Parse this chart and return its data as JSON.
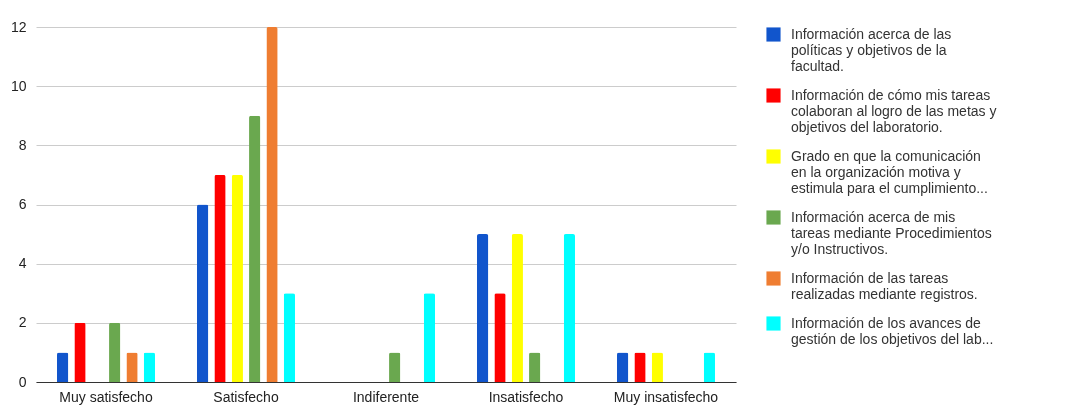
{
  "chart_data": {
    "type": "bar",
    "categories": [
      "Muy satisfecho",
      "Satisfecho",
      "Indiferente",
      "Insatisfecho",
      "Muy insatisfecho"
    ],
    "series": [
      {
        "name": "Información acerca de las políticas y objetivos de la facultad.",
        "color": "#1155cc",
        "values": [
          1,
          6,
          0,
          5,
          1
        ]
      },
      {
        "name": "Información de cómo mis tareas colaboran al logro de las metas y objetivos del laboratorio.",
        "color": "#ff0000",
        "values": [
          2,
          7,
          0,
          3,
          1
        ]
      },
      {
        "name": "Grado en que la comunicación en la organización motiva y estimula para el cumplimiento...",
        "color": "#ffff00",
        "values": [
          0,
          7,
          0,
          5,
          1
        ]
      },
      {
        "name": "Información acerca de mis tareas mediante Procedimientos y/o Instructivos.",
        "color": "#6aa84f",
        "values": [
          2,
          9,
          1,
          1,
          0
        ]
      },
      {
        "name": "Información de las tareas realizadas mediante registros.",
        "color": "#ef7d31",
        "values": [
          1,
          12,
          0,
          0,
          0
        ]
      },
      {
        "name": "Información de los avances de gestión de los objetivos del lab...",
        "color": "#00ffff",
        "values": [
          1,
          3,
          3,
          5,
          1
        ]
      }
    ],
    "ylim": [
      0,
      12
    ],
    "yticks": [
      0,
      2,
      4,
      6,
      8,
      10,
      12
    ],
    "grid": "y",
    "legend": "right"
  }
}
